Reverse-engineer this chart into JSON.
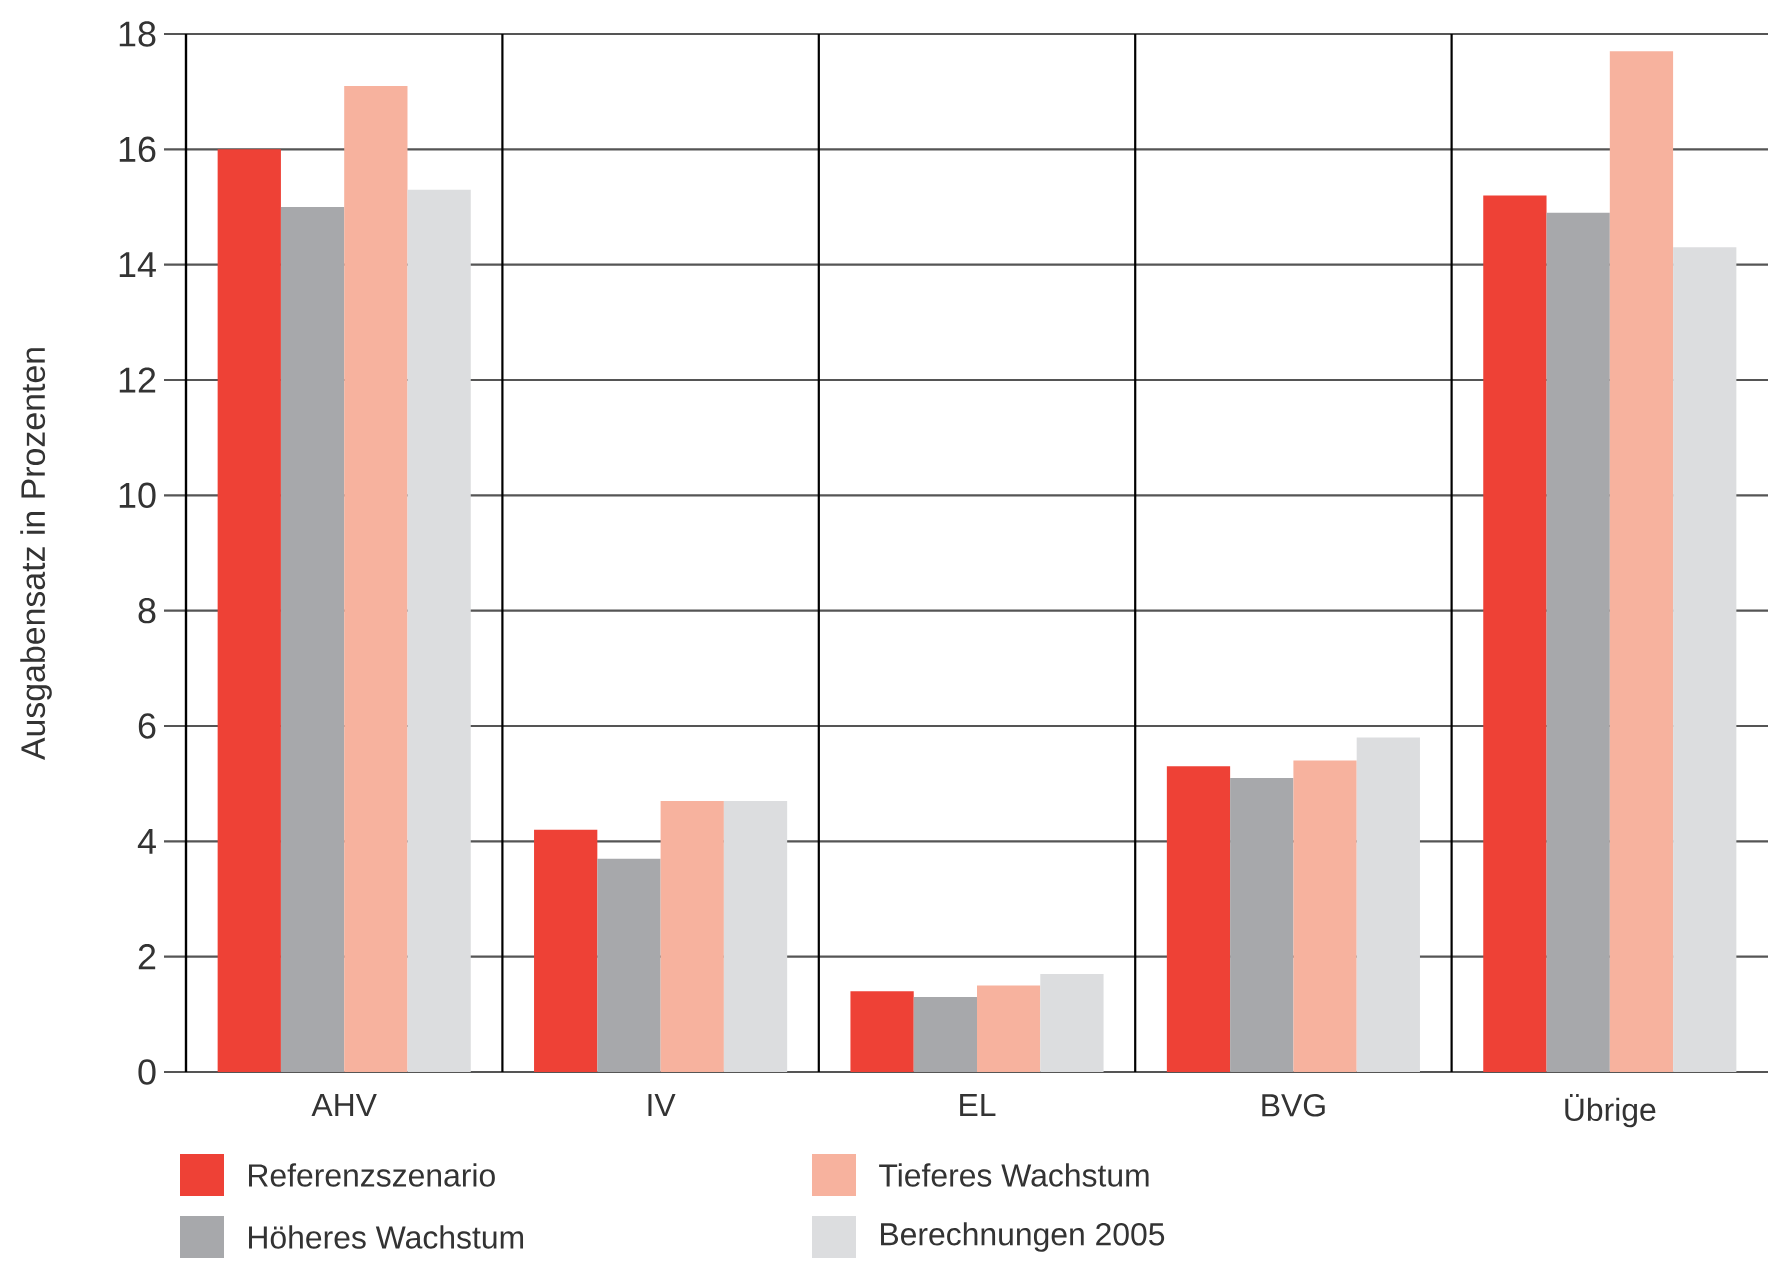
{
  "chart_data": {
    "type": "bar",
    "ylabel": "Ausgabensatz in Prozenten",
    "categories": [
      "AHV",
      "IV",
      "EL",
      "BVG",
      "Übrige"
    ],
    "series": [
      {
        "name": "Referenzszenario",
        "color": "#ee4136",
        "values": [
          16.0,
          4.2,
          1.4,
          5.3,
          15.2
        ]
      },
      {
        "name": "Höheres Wachstum",
        "color": "#a7a8ab",
        "values": [
          15.0,
          3.7,
          1.3,
          5.1,
          14.9
        ]
      },
      {
        "name": "Tieferes Wachstum",
        "color": "#f7b29e",
        "values": [
          17.1,
          4.7,
          1.5,
          5.4,
          17.7
        ]
      },
      {
        "name": "Berechnungen 2005",
        "color": "#dcdddf",
        "values": [
          15.3,
          4.7,
          1.7,
          5.8,
          14.3
        ]
      }
    ],
    "ylim": [
      0,
      18
    ],
    "yticks": [
      0,
      2,
      4,
      6,
      8,
      10,
      12,
      14,
      16,
      18
    ],
    "grid": true,
    "legend": "bottom"
  }
}
